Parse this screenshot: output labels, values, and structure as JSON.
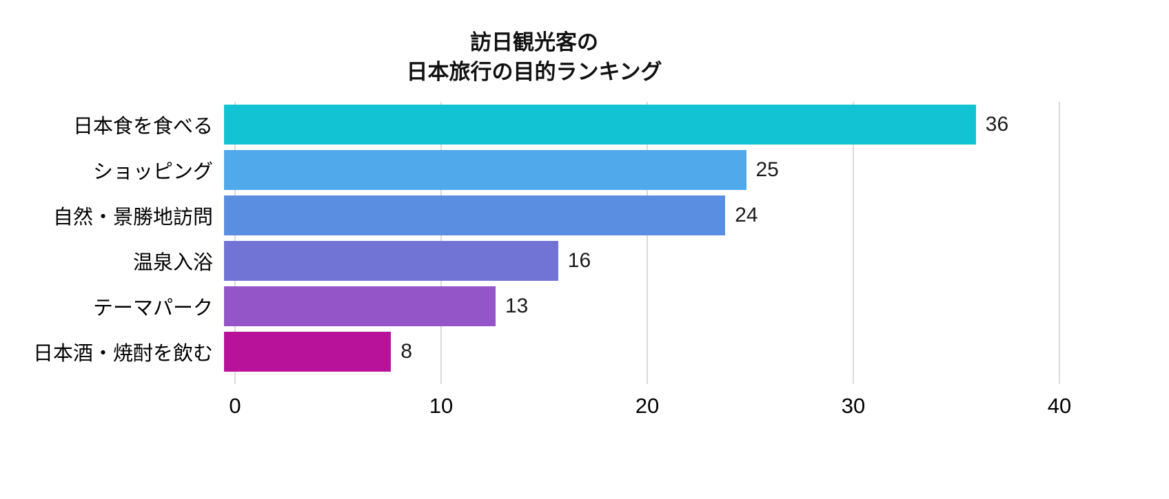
{
  "chart": {
    "title_line1": "訪日観光客の",
    "title_line2": "日本旅行の目的ランキング"
  },
  "chart_data": {
    "type": "bar",
    "orientation": "horizontal",
    "title": "訪日観光客の 日本旅行の目的ランキング",
    "categories": [
      "日本食を食べる",
      "ショッピング",
      "自然・景勝地訪問",
      "温泉入浴",
      "テーマパーク",
      "日本酒・焼酎を飲む"
    ],
    "values": [
      36,
      25,
      24,
      16,
      13,
      8
    ],
    "bar_colors": [
      "#12c3d3",
      "#4fa9ea",
      "#5a8ee0",
      "#7174d4",
      "#9355c8",
      "#b8129a"
    ],
    "xlabel": "",
    "ylabel": "",
    "xlim": [
      0,
      40
    ],
    "x_ticks": [
      0,
      10,
      20,
      30,
      40
    ],
    "grid": true,
    "gridline_color": "#d9d9d9",
    "value_labels": true,
    "legend": false,
    "background": "#ffffff"
  }
}
